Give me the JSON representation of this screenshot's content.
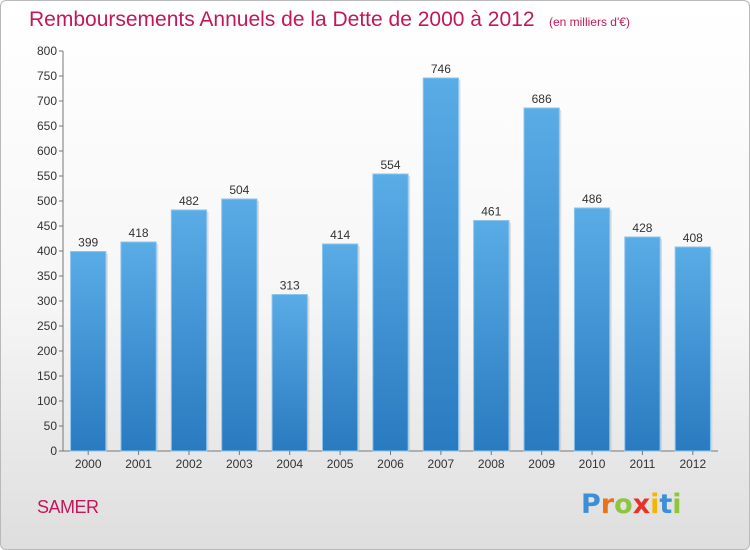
{
  "chart_data": {
    "type": "bar",
    "title": "Remboursements Annuels de la Dette de 2000 à 2012",
    "subtitle": "(en milliers d'€)",
    "categories": [
      "2000",
      "2001",
      "2002",
      "2003",
      "2004",
      "2005",
      "2006",
      "2007",
      "2008",
      "2009",
      "2010",
      "2011",
      "2012"
    ],
    "values": [
      399,
      418,
      482,
      504,
      313,
      414,
      554,
      746,
      461,
      686,
      486,
      428,
      408
    ],
    "ylim": [
      0,
      800
    ],
    "yticks": [
      0,
      50,
      100,
      150,
      200,
      250,
      300,
      350,
      400,
      450,
      500,
      550,
      600,
      650,
      700,
      750,
      800
    ],
    "grid": false,
    "bar_color_top": "#5aace6",
    "bar_color_bottom": "#2a7ac0"
  },
  "commune_name": "SAMER",
  "logo": {
    "letters": [
      "P",
      "r",
      "o",
      "x",
      "i",
      "t",
      "i"
    ],
    "colors": [
      "#3a8fd6",
      "#e8731c",
      "#8cc63f",
      "#e6332a",
      "#f2b705",
      "#3a8fd6",
      "#8cc63f"
    ]
  },
  "colors": {
    "title": "#c2185b",
    "axis": "#555555",
    "label": "#333333"
  }
}
